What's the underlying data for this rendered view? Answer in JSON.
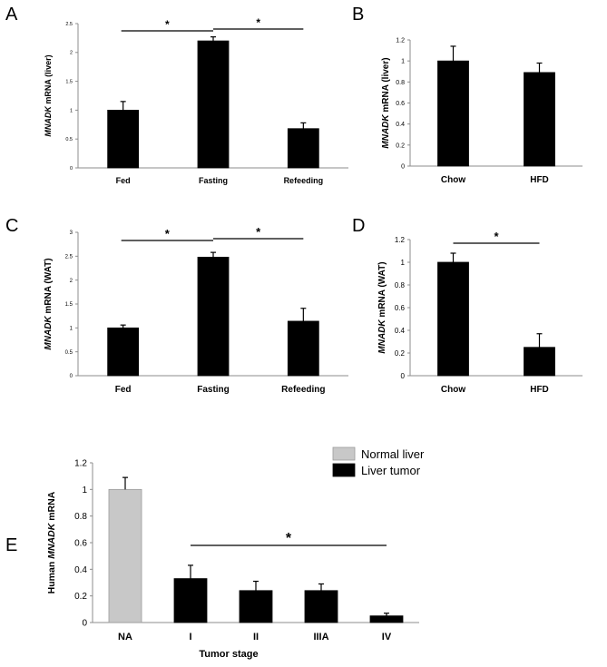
{
  "chart_data": [
    {
      "panel": "A",
      "type": "bar",
      "ylabel_italic": "MNADK",
      "ylabel_rest": " mRNA (liver)",
      "categories": [
        "Fed",
        "Fasting",
        "Refeeding"
      ],
      "values": [
        1.0,
        2.2,
        0.68
      ],
      "errors": [
        0.15,
        0.07,
        0.1
      ],
      "ylim": [
        0,
        2.5
      ],
      "yticks": [
        0,
        0.5,
        1,
        1.5,
        2,
        2.5
      ],
      "ytick_labels": [
        "0",
        "0.5",
        "1",
        "1.5",
        "2",
        "2.5"
      ],
      "significance": [
        {
          "from": 0,
          "to": 1,
          "label": "*"
        },
        {
          "from": 1,
          "to": 2,
          "label": "*"
        }
      ]
    },
    {
      "panel": "B",
      "type": "bar",
      "ylabel_italic": "MNADK",
      "ylabel_rest": " mRNA (liver)",
      "categories": [
        "Chow",
        "HFD"
      ],
      "values": [
        1.0,
        0.89
      ],
      "errors": [
        0.14,
        0.09
      ],
      "ylim": [
        0,
        1.2
      ],
      "yticks": [
        0,
        0.2,
        0.4,
        0.6,
        0.8,
        1,
        1.2
      ],
      "ytick_labels": [
        "0",
        "0.2",
        "0.4",
        "0.6",
        "0.8",
        "1",
        "1.2"
      ],
      "significance": []
    },
    {
      "panel": "C",
      "type": "bar",
      "ylabel_italic": "MNADK",
      "ylabel_rest": " mRNA (WAT)",
      "categories": [
        "Fed",
        "Fasting",
        "Refeeding"
      ],
      "values": [
        1.0,
        2.48,
        1.14
      ],
      "errors": [
        0.06,
        0.1,
        0.27
      ],
      "ylim": [
        0,
        3
      ],
      "yticks": [
        0,
        0.5,
        1,
        1.5,
        2,
        2.5,
        3
      ],
      "ytick_labels": [
        "0",
        "0.5",
        "1",
        "1.5",
        "2",
        "2.5",
        "3"
      ],
      "significance": [
        {
          "from": 0,
          "to": 1,
          "label": "*"
        },
        {
          "from": 1,
          "to": 2,
          "label": "*"
        }
      ]
    },
    {
      "panel": "D",
      "type": "bar",
      "ylabel_italic": "MNADK",
      "ylabel_rest": " mRNA (WAT)",
      "categories": [
        "Chow",
        "HFD"
      ],
      "values": [
        1.0,
        0.25
      ],
      "errors": [
        0.08,
        0.12
      ],
      "ylim": [
        0,
        1.2
      ],
      "yticks": [
        0,
        0.2,
        0.4,
        0.6,
        0.8,
        1,
        1.2
      ],
      "ytick_labels": [
        "0",
        "0.2",
        "0.4",
        "0.6",
        "0.8",
        "1",
        "1.2"
      ],
      "significance": [
        {
          "from": 0,
          "to": 1,
          "label": "*"
        }
      ]
    },
    {
      "panel": "E",
      "type": "bar",
      "ylabel_prefix": "Human ",
      "ylabel_italic": "MNADK",
      "ylabel_rest": " mRNA",
      "xlabel": "Tumor stage",
      "categories": [
        "NA",
        "I",
        "II",
        "IIIA",
        "IV"
      ],
      "values": [
        1.0,
        0.33,
        0.24,
        0.24,
        0.05
      ],
      "errors": [
        0.09,
        0.1,
        0.07,
        0.05,
        0.02
      ],
      "groups": [
        "normal",
        "tumor",
        "tumor",
        "tumor",
        "tumor"
      ],
      "ylim": [
        0,
        1.2
      ],
      "yticks": [
        0,
        0.2,
        0.4,
        0.6,
        0.8,
        1,
        1.2
      ],
      "ytick_labels": [
        "0",
        "0.2",
        "0.4",
        "0.6",
        "0.8",
        "1",
        "1.2"
      ],
      "legend": [
        {
          "key": "normal",
          "label": "Normal liver",
          "color": "#c8c8c8"
        },
        {
          "key": "tumor",
          "label": "Liver tumor",
          "color": "#000000"
        }
      ],
      "significance": [
        {
          "from": 1,
          "to": 4,
          "label": "*"
        }
      ]
    }
  ],
  "colors": {
    "bar": "#000000",
    "normal": "#c8c8c8",
    "tumor": "#000000",
    "axis": "#8c8c8c"
  }
}
